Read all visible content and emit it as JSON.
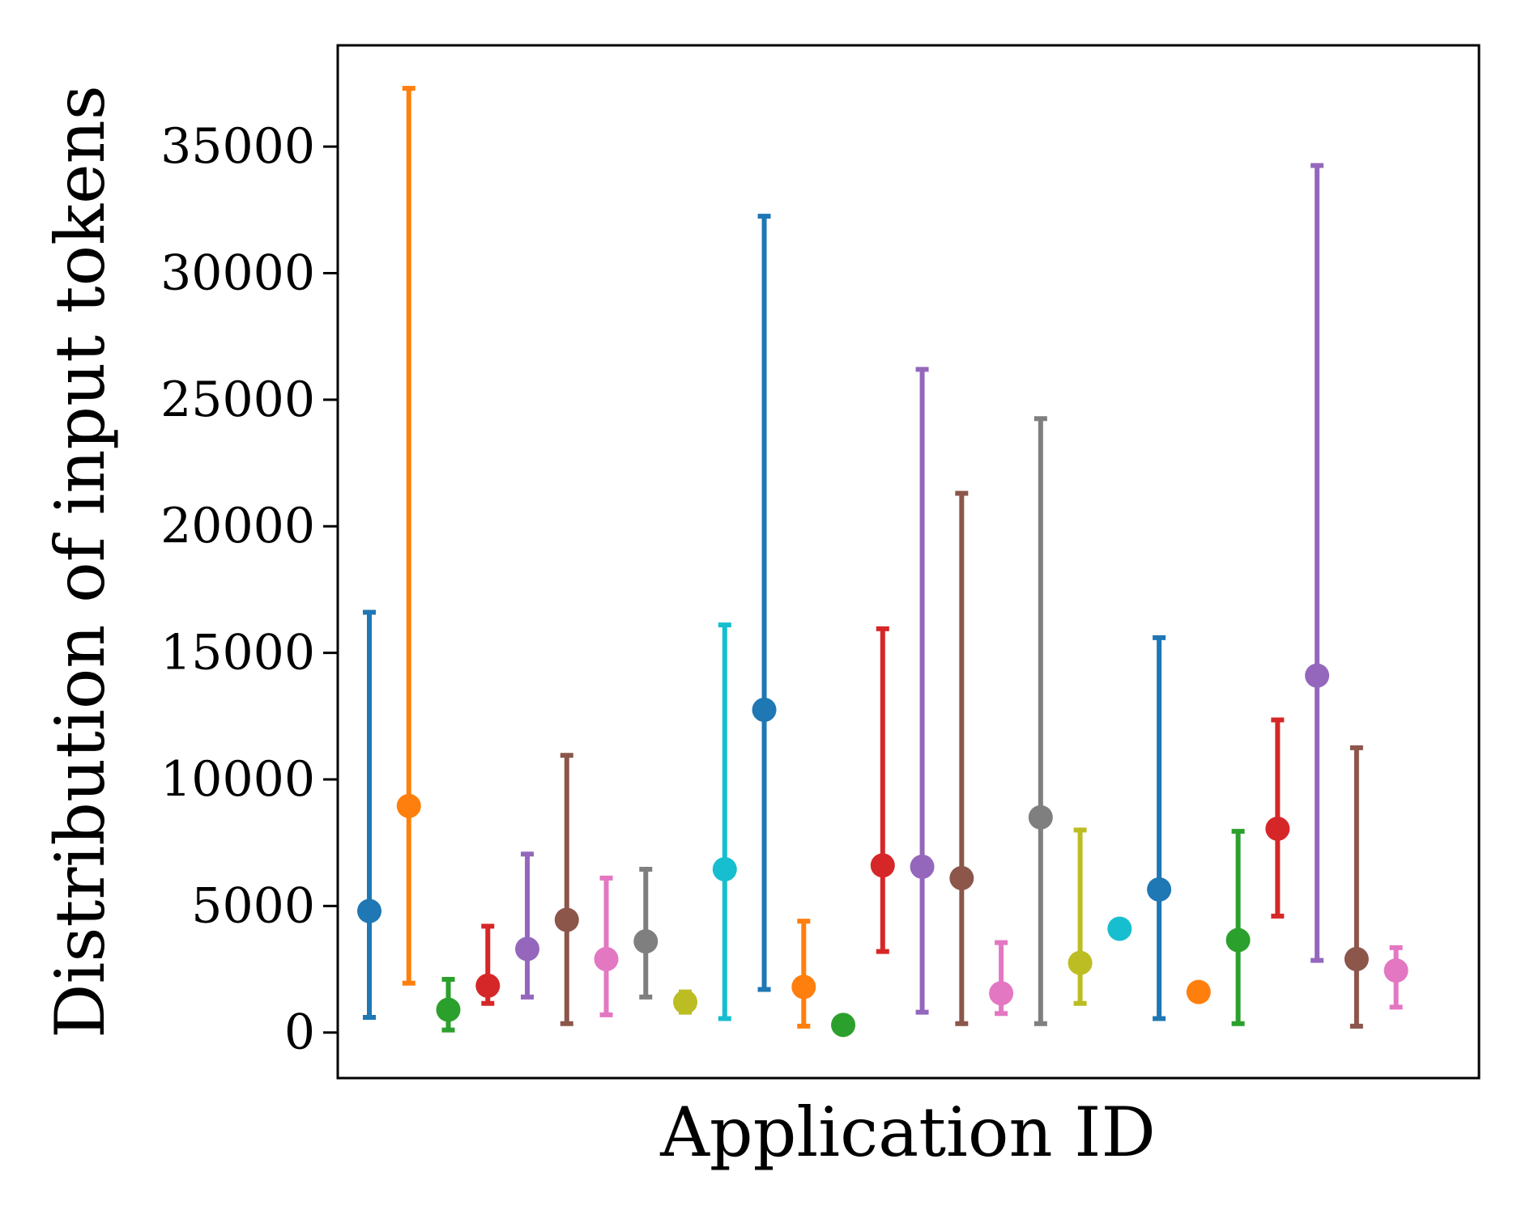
{
  "chart_data": {
    "type": "scatter",
    "xlabel": "Application ID",
    "ylabel": "Distribution of input tokens",
    "yticks": [
      0,
      5000,
      10000,
      15000,
      20000,
      25000,
      30000,
      35000
    ],
    "ylim": [
      -1800,
      39000
    ],
    "xlim": [
      0.2,
      29.1
    ],
    "grid": false,
    "series": [
      {
        "x": 1,
        "mean": 4800,
        "low": 600,
        "high": 16600,
        "color": "#1f77b4"
      },
      {
        "x": 2,
        "mean": 8950,
        "low": 1950,
        "high": 37300,
        "color": "#ff7f0e"
      },
      {
        "x": 3,
        "mean": 900,
        "low": 100,
        "high": 2100,
        "color": "#2ca02c"
      },
      {
        "x": 4,
        "mean": 1850,
        "low": 1150,
        "high": 4200,
        "color": "#d62728"
      },
      {
        "x": 5,
        "mean": 3300,
        "low": 1400,
        "high": 7050,
        "color": "#9467bd"
      },
      {
        "x": 6,
        "mean": 4450,
        "low": 350,
        "high": 10950,
        "color": "#8c564b"
      },
      {
        "x": 7,
        "mean": 2900,
        "low": 700,
        "high": 6100,
        "color": "#e377c2"
      },
      {
        "x": 8,
        "mean": 3600,
        "low": 1400,
        "high": 6450,
        "color": "#7f7f7f"
      },
      {
        "x": 9,
        "mean": 1200,
        "low": 800,
        "high": 1600,
        "color": "#bcbd22"
      },
      {
        "x": 10,
        "mean": 6450,
        "low": 550,
        "high": 16100,
        "color": "#17becf"
      },
      {
        "x": 11,
        "mean": 12750,
        "low": 1700,
        "high": 32250,
        "color": "#1f77b4"
      },
      {
        "x": 12,
        "mean": 1800,
        "low": 250,
        "high": 4400,
        "color": "#ff7f0e"
      },
      {
        "x": 13,
        "mean": 300,
        "low": 300,
        "high": 300,
        "color": "#2ca02c"
      },
      {
        "x": 14,
        "mean": 6600,
        "low": 3200,
        "high": 15950,
        "color": "#d62728"
      },
      {
        "x": 15,
        "mean": 6550,
        "low": 800,
        "high": 26200,
        "color": "#9467bd"
      },
      {
        "x": 16,
        "mean": 6100,
        "low": 350,
        "high": 21300,
        "color": "#8c564b"
      },
      {
        "x": 17,
        "mean": 1550,
        "low": 750,
        "high": 3550,
        "color": "#e377c2"
      },
      {
        "x": 18,
        "mean": 8500,
        "low": 350,
        "high": 24250,
        "color": "#7f7f7f"
      },
      {
        "x": 19,
        "mean": 2750,
        "low": 1150,
        "high": 8000,
        "color": "#bcbd22"
      },
      {
        "x": 20,
        "mean": 4100,
        "low": 3800,
        "high": 4400,
        "color": "#17becf"
      },
      {
        "x": 21,
        "mean": 5650,
        "low": 550,
        "high": 15600,
        "color": "#1f77b4"
      },
      {
        "x": 22,
        "mean": 1600,
        "low": 1350,
        "high": 1850,
        "color": "#ff7f0e"
      },
      {
        "x": 23,
        "mean": 3650,
        "low": 350,
        "high": 7950,
        "color": "#2ca02c"
      },
      {
        "x": 24,
        "mean": 8050,
        "low": 4600,
        "high": 12350,
        "color": "#d62728"
      },
      {
        "x": 25,
        "mean": 14100,
        "low": 2850,
        "high": 34250,
        "color": "#9467bd"
      },
      {
        "x": 26,
        "mean": 2900,
        "low": 250,
        "high": 11250,
        "color": "#8c564b"
      },
      {
        "x": 27,
        "mean": 2450,
        "low": 1000,
        "high": 3350,
        "color": "#e377c2"
      }
    ]
  }
}
